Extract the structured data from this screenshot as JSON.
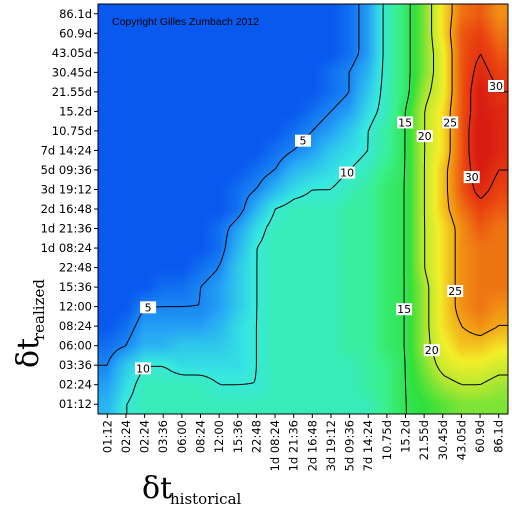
{
  "copyright": "Copyright Gilles Zumbach 2012",
  "chart_data": {
    "type": "heatmap",
    "xlabel": {
      "symbol": "δt",
      "subscript": "historical"
    },
    "ylabel": {
      "symbol": "δt",
      "subscript": "realized"
    },
    "x_categories": [
      "01:12",
      "02:24",
      "02:24",
      "03:36",
      "06:00",
      "08:24",
      "12:00",
      "15:36",
      "22:48",
      "1d 08:24",
      "1d 21:36",
      "2d 16:48",
      "3d 19:12",
      "5d 09:36",
      "7d 14:24",
      "10.75d",
      "15.2d",
      "21.55d",
      "30.45d",
      "43.05d",
      "60.9d",
      "86.1d"
    ],
    "y_categories": [
      "86.1d",
      "60.9d",
      "43.05d",
      "30.45d",
      "21.55d",
      "15.2d",
      "10.75d",
      "7d 14:24",
      "5d 09:36",
      "3d 19:12",
      "2d 16:48",
      "1d 21:36",
      "1d 08:24",
      "22:48",
      "15:36",
      "12:00",
      "08:24",
      "06:00",
      "03:36",
      "02:24",
      "01:12"
    ],
    "colorscale": [
      "#0026d9",
      "#0a5cf0",
      "#27a8f5",
      "#37e8e0",
      "#3af08a",
      "#2fe03c",
      "#a8e632",
      "#f3ef2a",
      "#f29a14",
      "#ea4410",
      "#d81c12"
    ],
    "value_range": [
      0,
      32
    ],
    "contour_levels": [
      5,
      10,
      15,
      20,
      25,
      30
    ],
    "contour_labels": [
      "5",
      "10",
      "15",
      "20",
      "25",
      "30"
    ],
    "values": [
      [
        3,
        3,
        3,
        3,
        3,
        3,
        3,
        3,
        3,
        3,
        3,
        3,
        3,
        4,
        6,
        11,
        14,
        18,
        23,
        27,
        28,
        26
      ],
      [
        3,
        3,
        3,
        3,
        3,
        3,
        3,
        3,
        3,
        3,
        3,
        3,
        3,
        4,
        6,
        11,
        14,
        18,
        23,
        28,
        29,
        27
      ],
      [
        3,
        3,
        3,
        3,
        3,
        3,
        3,
        3,
        3,
        3,
        3,
        3,
        3,
        4,
        6,
        11,
        14,
        18,
        22,
        28,
        30,
        28
      ],
      [
        3,
        3,
        3,
        3,
        3,
        3,
        3,
        3,
        3,
        3,
        3,
        3,
        4,
        5,
        7,
        11,
        14,
        18,
        22,
        28,
        31,
        29
      ],
      [
        3,
        3,
        3,
        3,
        3,
        3,
        3,
        3,
        3,
        3,
        3,
        3,
        4,
        5,
        8,
        11,
        14,
        19,
        22,
        28,
        32,
        30
      ],
      [
        3,
        3,
        3,
        3,
        3,
        3,
        3,
        3,
        3,
        3,
        3,
        4,
        5,
        6,
        9,
        11,
        15,
        20,
        23,
        28,
        32,
        31
      ],
      [
        3,
        3,
        3,
        3,
        3,
        3,
        3,
        3,
        3,
        3,
        4,
        5,
        6,
        8,
        10,
        12,
        15,
        20,
        23,
        28,
        33,
        31
      ],
      [
        3,
        3,
        3,
        3,
        3,
        3,
        3,
        3,
        3,
        4,
        5,
        6,
        8,
        9,
        10,
        12,
        15,
        20,
        23,
        28,
        33,
        31
      ],
      [
        3,
        3,
        3,
        3,
        3,
        3,
        3,
        3,
        4,
        5,
        7,
        8,
        9,
        10,
        11,
        13,
        15,
        20,
        24,
        28,
        32,
        30
      ],
      [
        3,
        3,
        3,
        3,
        3,
        3,
        3,
        4,
        5,
        7,
        9,
        10,
        10,
        11,
        12,
        14,
        15,
        20,
        24,
        28,
        31,
        29
      ],
      [
        3,
        3,
        3,
        3,
        3,
        3,
        3,
        4,
        7,
        10,
        11,
        11,
        11,
        12,
        12,
        14,
        15,
        20,
        24,
        27,
        29,
        28
      ],
      [
        3,
        3,
        3,
        3,
        3,
        3,
        4,
        6,
        9,
        11,
        11,
        11,
        11,
        12,
        12,
        14,
        15,
        20,
        23,
        26,
        28,
        27
      ],
      [
        3,
        3,
        3,
        3,
        3,
        3,
        4,
        7,
        10,
        11,
        11,
        11,
        11,
        12,
        12,
        14,
        15,
        20,
        23,
        26,
        27,
        27
      ],
      [
        3,
        3,
        3,
        3,
        3,
        4,
        5,
        8,
        10,
        11,
        11,
        11,
        11,
        12,
        12,
        14,
        15,
        20,
        23,
        26,
        27,
        27
      ],
      [
        3,
        3,
        3,
        4,
        4,
        5,
        6,
        8,
        10,
        11,
        11,
        11,
        11,
        12,
        12,
        14,
        15,
        19,
        23,
        26,
        27,
        27
      ],
      [
        3,
        3,
        5,
        5,
        5,
        5,
        6,
        8,
        10,
        11,
        11,
        11,
        11,
        12,
        12,
        14,
        15,
        19,
        23,
        26,
        27,
        26
      ],
      [
        3,
        4,
        6,
        6,
        6,
        6,
        7,
        9,
        10,
        11,
        11,
        11,
        11,
        12,
        12,
        14,
        15,
        19,
        23,
        25,
        26,
        25
      ],
      [
        4,
        5,
        7,
        7,
        8,
        8,
        8,
        9,
        10,
        11,
        11,
        11,
        11,
        12,
        12,
        14,
        15,
        19,
        22,
        24,
        24,
        23
      ],
      [
        5,
        8,
        10,
        10,
        9,
        9,
        9,
        9,
        10,
        11,
        11,
        11,
        11,
        11,
        12,
        13,
        15,
        18,
        21,
        22,
        22,
        21
      ],
      [
        6,
        9,
        11,
        11,
        11,
        11,
        10,
        10,
        10,
        11,
        11,
        11,
        11,
        11,
        12,
        13,
        15,
        17,
        19,
        20,
        20,
        19
      ],
      [
        7,
        10,
        11,
        11,
        11,
        11,
        11,
        11,
        11,
        11,
        11,
        11,
        11,
        11,
        11,
        13,
        15,
        16,
        17,
        18,
        18,
        18
      ]
    ]
  }
}
